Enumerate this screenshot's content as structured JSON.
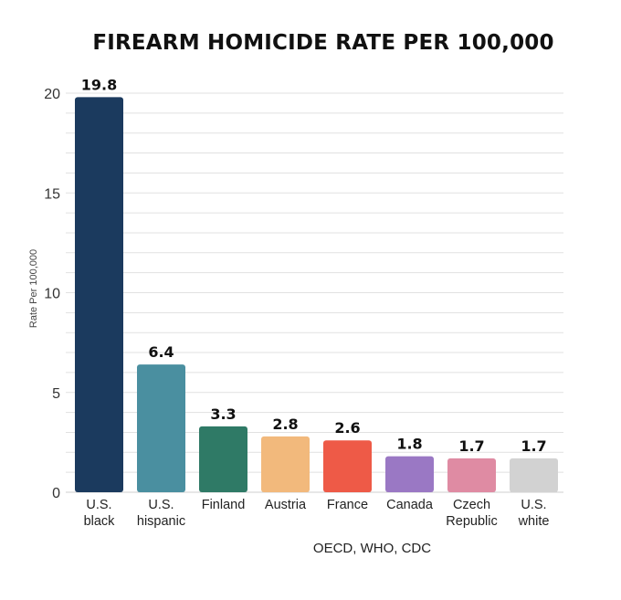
{
  "chart_data": {
    "type": "bar",
    "title": "FIREARM HOMICIDE RATE PER 100,000",
    "ylabel": "Rate Per 100,000",
    "xlabel": "",
    "ylim": [
      0,
      20
    ],
    "yticks": [
      0,
      5,
      10,
      15,
      20
    ],
    "grid": true,
    "categories": [
      [
        "U.S.",
        "black"
      ],
      [
        "U.S.",
        "hispanic"
      ],
      [
        "Finland"
      ],
      [
        "Austria"
      ],
      [
        "France"
      ],
      [
        "Canada"
      ],
      [
        "Czech",
        "Republic"
      ],
      [
        "U.S.",
        "white"
      ]
    ],
    "values": [
      19.8,
      6.4,
      3.3,
      2.8,
      2.6,
      1.8,
      1.7,
      1.7
    ],
    "value_labels": [
      "19.8",
      "6.4",
      "3.3",
      "2.8",
      "2.6",
      "1.8",
      "1.7",
      "1.7"
    ],
    "colors": [
      "#1b3a5e",
      "#4a8fa0",
      "#2f7a66",
      "#f2b97c",
      "#ee5a47",
      "#9a78c4",
      "#df8ba3",
      "#d2d2d2"
    ],
    "source": "OECD, WHO, CDC"
  }
}
